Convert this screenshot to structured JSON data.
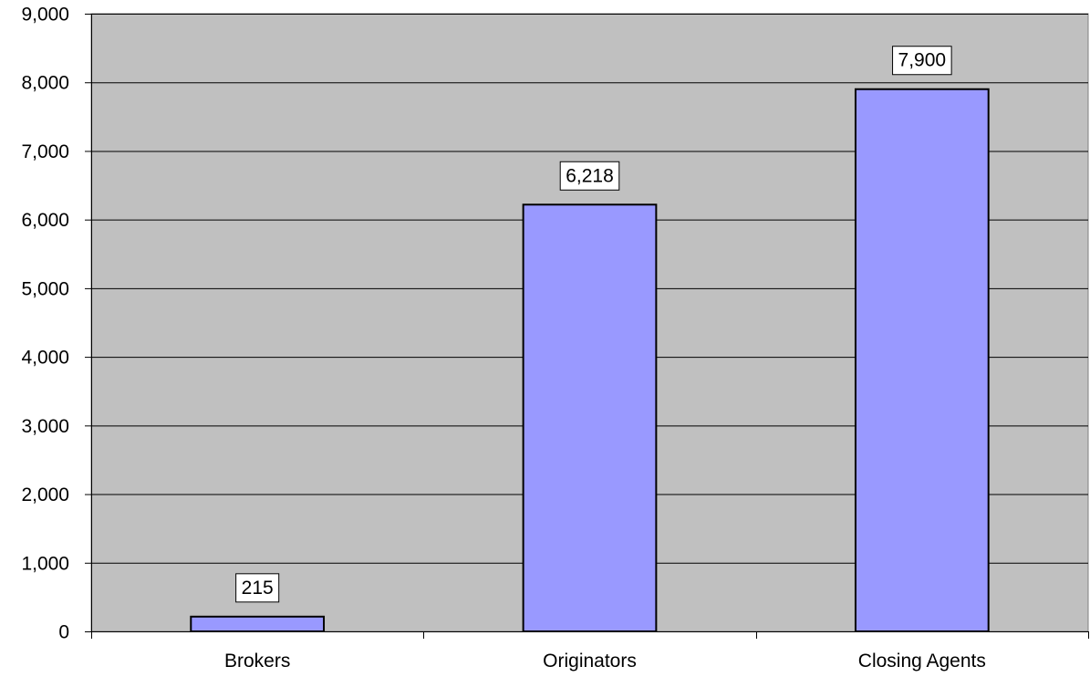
{
  "chart_data": {
    "type": "bar",
    "title": "",
    "xlabel": "",
    "ylabel": "",
    "categories": [
      "Brokers",
      "Originators",
      "Closing Agents"
    ],
    "values": [
      215,
      6218,
      7900
    ],
    "value_labels": [
      "215",
      "6,218",
      "7,900"
    ],
    "ylim": [
      0,
      9000
    ],
    "y_ticks": [
      0,
      1000,
      2000,
      3000,
      4000,
      5000,
      6000,
      7000,
      8000,
      9000
    ],
    "y_tick_labels": [
      "0",
      "1,000",
      "2,000",
      "3,000",
      "4,000",
      "5,000",
      "6,000",
      "7,000",
      "8,000",
      "9,000"
    ],
    "grid": true,
    "legend": "none",
    "colors": {
      "plot_background": "#C0C0C0",
      "bar_fill": "#9999FF",
      "bar_stroke": "#000000",
      "gridline": "#000000",
      "label_box_fill": "#FFFFFF"
    }
  }
}
